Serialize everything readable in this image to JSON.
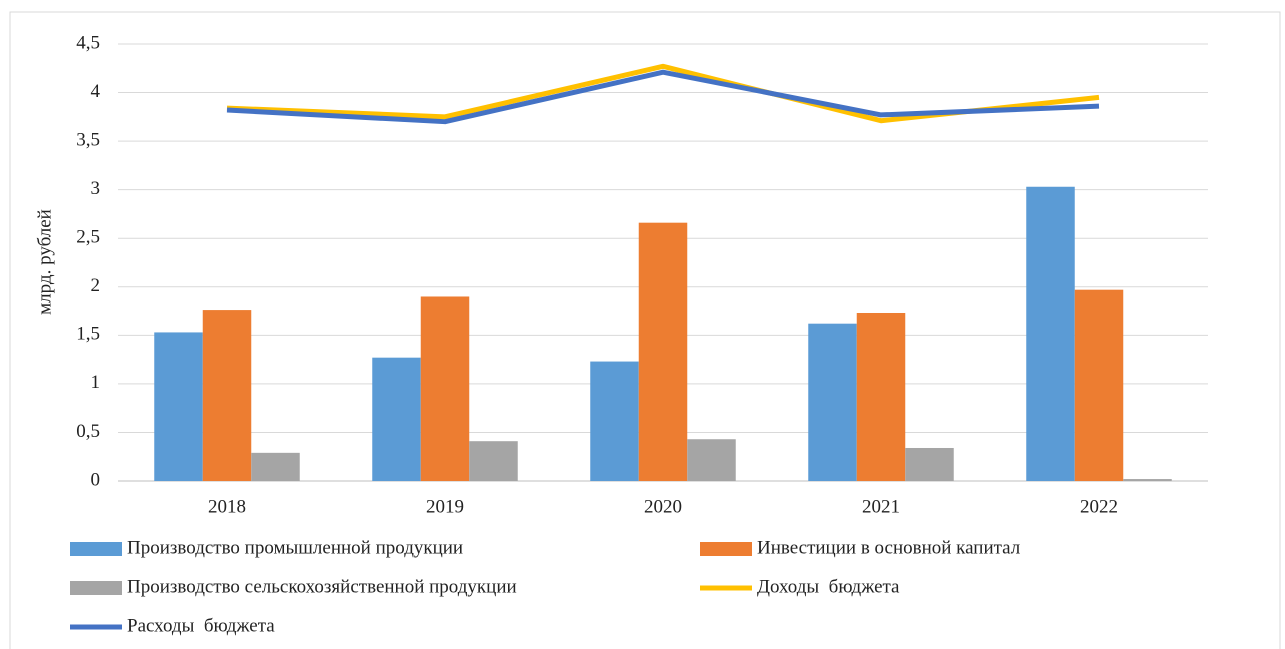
{
  "chart_data": {
    "type": "bar",
    "y_label": "млрд. рублей",
    "categories": [
      "2018",
      "2019",
      "2020",
      "2021",
      "2022"
    ],
    "series": [
      {
        "name": "Производство промышленной продукции",
        "type": "bar",
        "color": "#5b9bd5",
        "values": [
          1.53,
          1.27,
          1.23,
          1.62,
          3.03
        ]
      },
      {
        "name": "Инвестиции в основной капитал",
        "type": "bar",
        "color": "#ed7d31",
        "values": [
          1.76,
          1.9,
          2.66,
          1.73,
          1.97
        ]
      },
      {
        "name": "Производство сельскохозяйственной продукции",
        "type": "bar",
        "color": "#a5a5a5",
        "values": [
          0.29,
          0.41,
          0.43,
          0.34,
          0.02
        ]
      },
      {
        "name": "Доходы  бюджета",
        "type": "line",
        "color": "#ffc000",
        "values": [
          3.84,
          3.75,
          4.27,
          3.71,
          3.95
        ]
      },
      {
        "name": "Расходы  бюджета",
        "type": "line",
        "color": "#4472c4",
        "values": [
          3.82,
          3.7,
          4.21,
          3.77,
          3.86
        ]
      }
    ],
    "ylim": [
      0,
      4.5
    ],
    "yticks": [
      0,
      {
        "value": 0.5,
        "label": "0,5"
      },
      1,
      {
        "value": 1.5,
        "label": "1,5"
      },
      2,
      {
        "value": 2.5,
        "label": "2,5"
      },
      3,
      {
        "value": 3.5,
        "label": "3,5"
      },
      4,
      {
        "value": 4.5,
        "label": "4,5"
      }
    ],
    "grid": true,
    "legend": "bottom"
  }
}
